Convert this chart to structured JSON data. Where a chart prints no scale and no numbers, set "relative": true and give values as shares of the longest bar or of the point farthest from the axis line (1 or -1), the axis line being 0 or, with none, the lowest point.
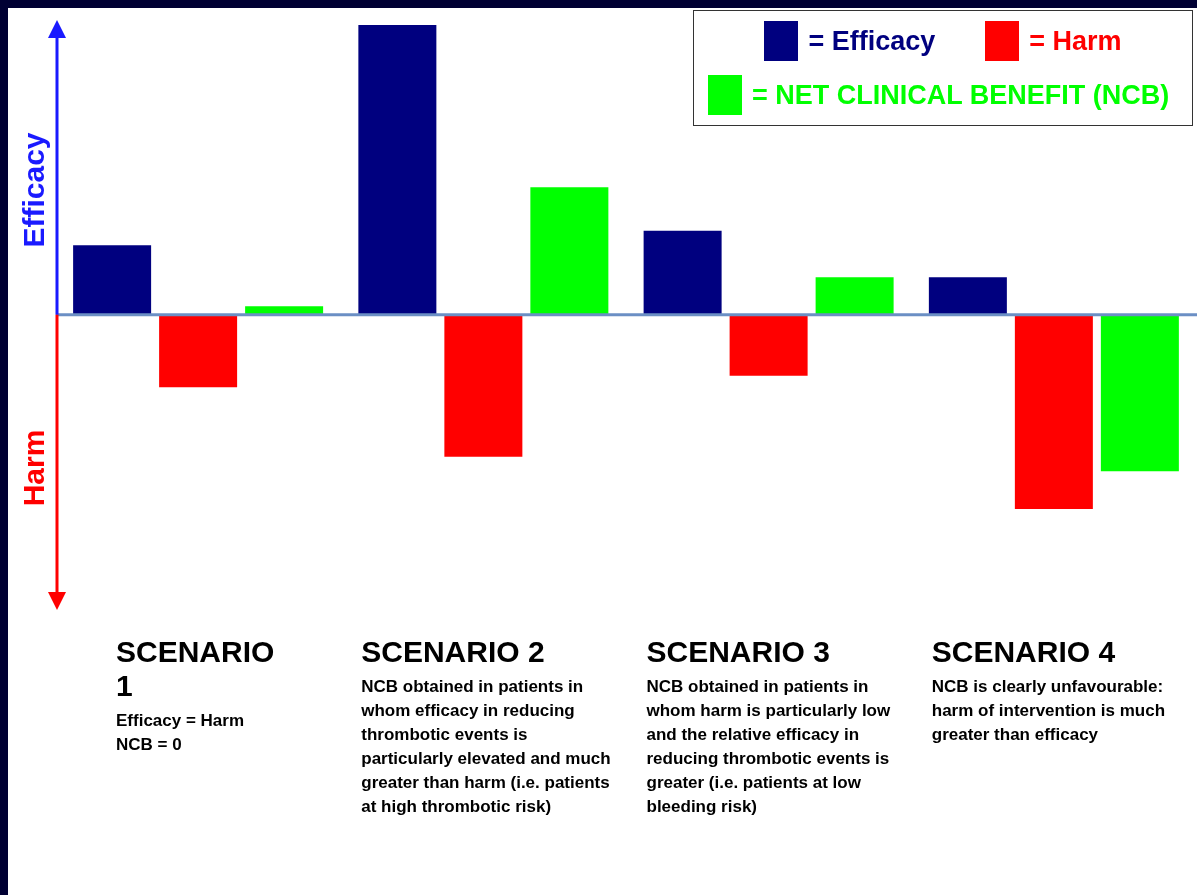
{
  "chart_data": {
    "type": "bar",
    "relative": true,
    "categories": [
      "SCENARIO 1",
      "SCENARIO 2",
      "SCENARIO 3",
      "SCENARIO 4"
    ],
    "series": [
      {
        "name": "= Efficacy",
        "color": "#00007f",
        "values": [
          0.24,
          1,
          0.29,
          0.13
        ]
      },
      {
        "name": "= Harm",
        "color": "#ff0000",
        "values": [
          -0.25,
          -0.49,
          -0.21,
          -0.67
        ]
      },
      {
        "name": "= NET CLINICAL BENEFIT (NCB)",
        "color": "#00ff00",
        "values": [
          0.03,
          0.44,
          0.13,
          -0.54
        ]
      }
    ],
    "legend": "top right",
    "ref_lines": [
      {
        "axis": "y",
        "value": 0,
        "color": "#6b8fc4"
      }
    ],
    "annotations": [
      "Efficacy",
      "Harm",
      "Efficacy = Harm\nNCB = 0",
      "NCB obtained in patients in whom efficacy in reducing thrombotic events is particularly elevated and much greater than harm (i.e. patients at high thrombotic risk)",
      "NCB obtained in patients in whom harm is particularly low and the relative efficacy in reducing thrombotic events is greater (i.e. patients at low bleeding risk)",
      "NCB is clearly unfavourable: harm of intervention is much greater than efficacy"
    ]
  }
}
